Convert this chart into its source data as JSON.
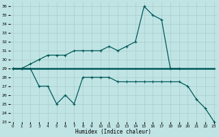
{
  "xlabel": "Humidex (Indice chaleur)",
  "x": [
    0,
    1,
    2,
    3,
    4,
    5,
    6,
    7,
    8,
    9,
    10,
    11,
    12,
    13,
    14,
    15,
    16,
    17,
    18,
    19,
    20,
    21,
    22,
    23
  ],
  "top": [
    29,
    29,
    29.5,
    30,
    30.5,
    30.5,
    30.5,
    31,
    31,
    31,
    31,
    31.5,
    31,
    31.5,
    32,
    36,
    35,
    34.5,
    29,
    29,
    null,
    null,
    null,
    null
  ],
  "mid": [
    29,
    29,
    29,
    29,
    29,
    29,
    29,
    29,
    29,
    29,
    29,
    29,
    29,
    29,
    29,
    29,
    29,
    29,
    29,
    29,
    29,
    29,
    29,
    29
  ],
  "bot": [
    29,
    29,
    29,
    27,
    27,
    25,
    26,
    25,
    28,
    28,
    28,
    28,
    27.5,
    27.5,
    27.5,
    27.5,
    27.5,
    27.5,
    27.5,
    27.5,
    27,
    25.5,
    24.5,
    23
  ],
  "background_color": "#c0e4e4",
  "grid_color": "#a8cccc",
  "line_color": "#005858",
  "ylim": [
    23,
    36.5
  ],
  "yticks": [
    23,
    24,
    25,
    26,
    27,
    28,
    29,
    30,
    31,
    32,
    33,
    34,
    35,
    36
  ],
  "xlim": [
    -0.3,
    23.3
  ]
}
